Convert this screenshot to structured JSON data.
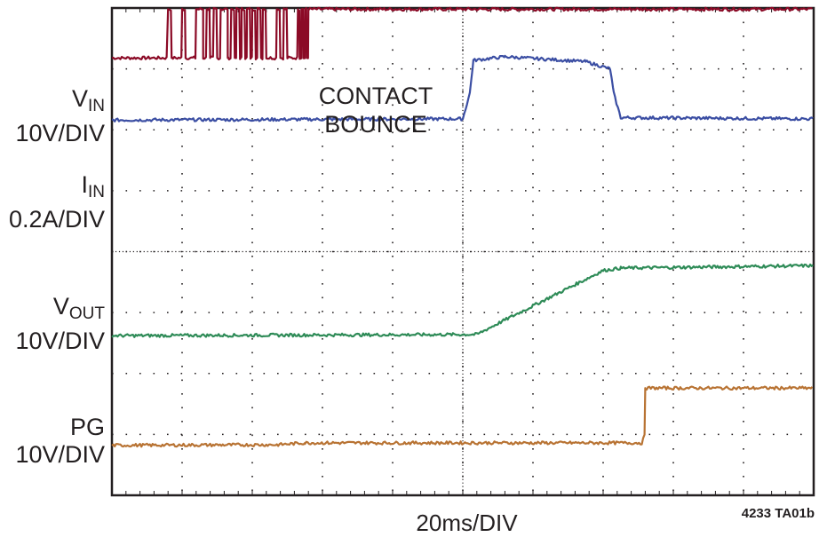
{
  "chart_data": {
    "type": "line",
    "title": "",
    "xlabel": "20ms/DIV",
    "figure_id": "4233 TA01b",
    "annotation": [
      "CONTACT",
      "BOUNCE"
    ],
    "divisions": {
      "x": 10,
      "y": 8
    },
    "x_unit": "ms",
    "x_per_div": 20,
    "xlim": [
      0,
      200
    ],
    "grid": true,
    "channels": [
      {
        "key": "vin",
        "label_main": "V",
        "label_sub": "IN",
        "scale": "10V/DIV",
        "color": "#8b0a26",
        "low_div": 7.18,
        "high_div": 7.98,
        "bounce_start_ms": 16,
        "bounce_end_ms": 56,
        "settle_ms": 56
      },
      {
        "key": "iin",
        "label_main": "I",
        "label_sub": "IN",
        "scale": "0.2A/DIV",
        "color": "#3b4ea3",
        "points": [
          [
            0,
            6.16
          ],
          [
            100,
            6.18
          ],
          [
            102,
            6.6
          ],
          [
            103,
            7.14
          ],
          [
            112,
            7.2
          ],
          [
            135,
            7.12
          ],
          [
            142,
            7.0
          ],
          [
            143,
            6.6
          ],
          [
            145,
            6.2
          ],
          [
            200,
            6.18
          ]
        ]
      },
      {
        "key": "vout",
        "label_main": "V",
        "label_sub": "OUT",
        "scale": "10V/DIV",
        "color": "#2e8b57",
        "points": [
          [
            0,
            2.62
          ],
          [
            104,
            2.64
          ],
          [
            110,
            2.82
          ],
          [
            140,
            3.69
          ],
          [
            145,
            3.73
          ],
          [
            200,
            3.77
          ]
        ]
      },
      {
        "key": "pg",
        "label_main": "PG",
        "label_sub": "",
        "scale": "10V/DIV",
        "color": "#b87333",
        "points": [
          [
            0,
            0.82
          ],
          [
            47,
            0.83
          ],
          [
            55,
            0.86
          ],
          [
            151,
            0.86
          ],
          [
            152,
            1.0
          ],
          [
            152,
            1.76
          ],
          [
            200,
            1.76
          ]
        ]
      }
    ]
  }
}
